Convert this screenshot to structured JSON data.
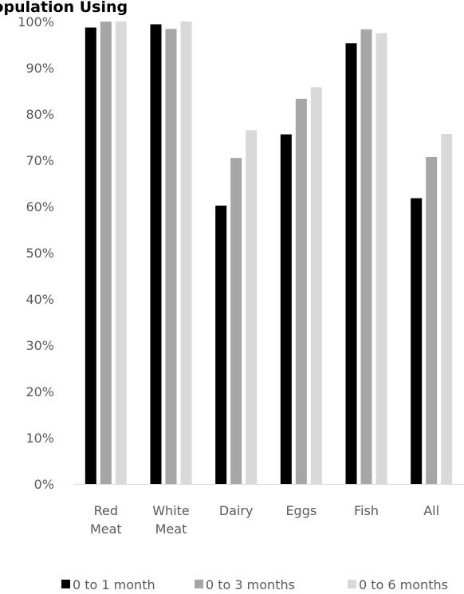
{
  "chart_data": {
    "type": "bar",
    "title": "e Population Using",
    "xlabel": "",
    "ylabel": "",
    "ylim": [
      0,
      1
    ],
    "y_ticks": [
      "0%",
      "10%",
      "20%",
      "30%",
      "40%",
      "50%",
      "60%",
      "70%",
      "80%",
      "90%",
      "100%"
    ],
    "categories": [
      [
        "Red",
        "Meat"
      ],
      [
        "White",
        "Meat"
      ],
      [
        "Dairy"
      ],
      [
        "Eggs"
      ],
      [
        "Fish"
      ],
      [
        "All"
      ]
    ],
    "series": [
      {
        "name": "0 to 1 month",
        "values": [
          0.987,
          0.994,
          0.602,
          0.756,
          0.953,
          0.618
        ]
      },
      {
        "name": "0 to 3 months",
        "values": [
          1.0,
          0.984,
          0.705,
          0.833,
          0.983,
          0.707
        ]
      },
      {
        "name": "0 to 6 months",
        "values": [
          1.0,
          1.0,
          0.765,
          0.858,
          0.975,
          0.757
        ]
      }
    ],
    "colors": [
      "#000000",
      "#a6a6a6",
      "#d9d9d9"
    ],
    "grid": false,
    "legend_position": "bottom"
  }
}
